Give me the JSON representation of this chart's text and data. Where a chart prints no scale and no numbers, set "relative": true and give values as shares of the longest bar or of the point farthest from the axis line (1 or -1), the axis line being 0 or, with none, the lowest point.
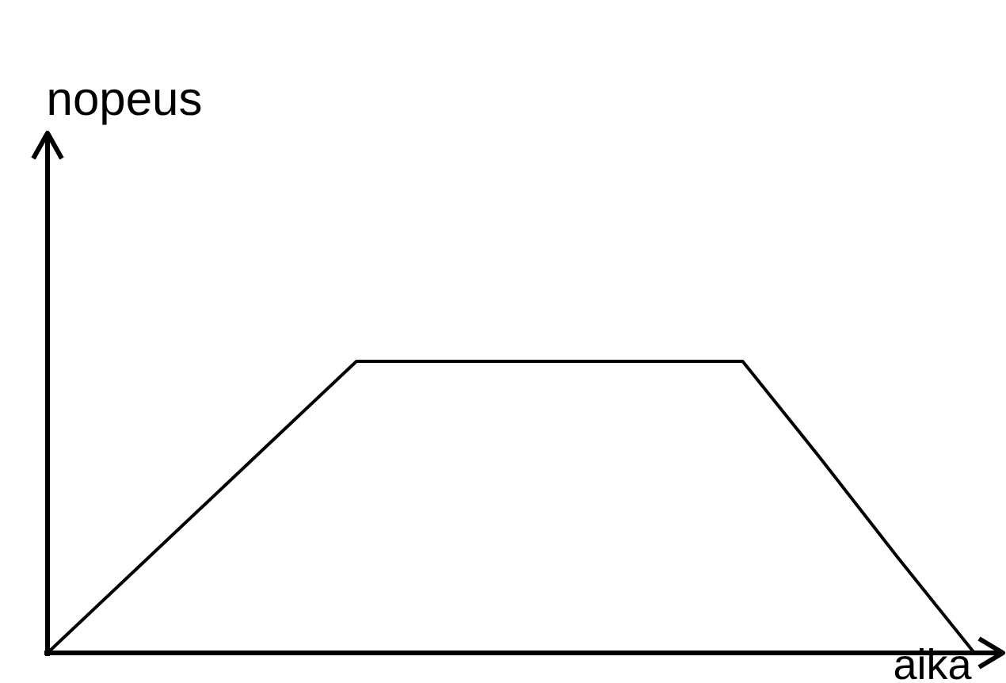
{
  "chart_data": {
    "type": "line",
    "relative": true,
    "xlabel": "aika",
    "ylabel": "nopeus",
    "categories": [
      null,
      null,
      null,
      null,
      null,
      null,
      null,
      null,
      null,
      null,
      null,
      null,
      null
    ],
    "series": [
      {
        "color": "#000000",
        "values": [
          0,
          0.25,
          0.5,
          0.75,
          1,
          1,
          1,
          1,
          1,
          1,
          0.67,
          0.33,
          0
        ]
      }
    ]
  }
}
